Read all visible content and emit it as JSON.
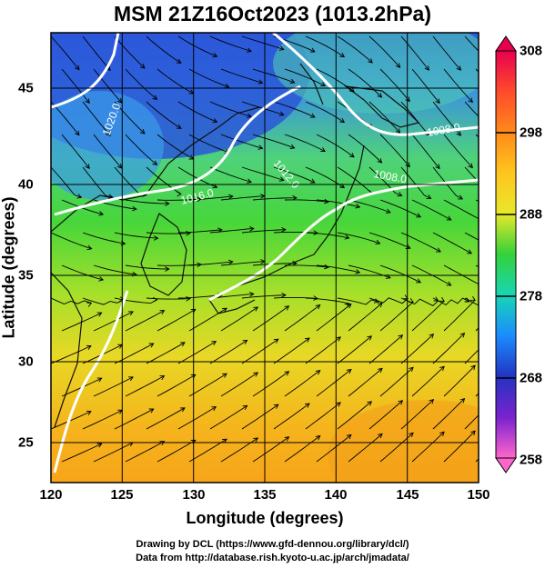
{
  "title": "MSM 21Z16Oct2023 (1013.2hPa)",
  "x_axis": {
    "label": "Longitude (degrees)",
    "ticks": [
      "120",
      "125",
      "130",
      "135",
      "140",
      "145",
      "150"
    ]
  },
  "y_axis": {
    "label": "Latitude  (degrees)",
    "ticks": [
      "25",
      "30",
      "35",
      "40",
      "45"
    ]
  },
  "colorbar": {
    "ticks": [
      "308",
      "298",
      "288",
      "278",
      "268",
      "258"
    ],
    "colors": [
      "#e8004f",
      "#ff4b2b",
      "#ff9a1a",
      "#ffd21e",
      "#b3e62a",
      "#33d13a",
      "#18d6b5",
      "#1a8cff",
      "#2333c2",
      "#b21ad1",
      "#ff66cc"
    ]
  },
  "contours": {
    "labels": [
      "1020.0",
      "1016.0",
      "1012.0",
      "1008.0",
      "1008.0"
    ]
  },
  "credits": {
    "line1": "Drawing by DCL (https://www.gfd-dennou.org/library/dcl/)",
    "line2": "Data from http://database.rish.kyoto-u.ac.jp/arch/jmadata/"
  }
}
